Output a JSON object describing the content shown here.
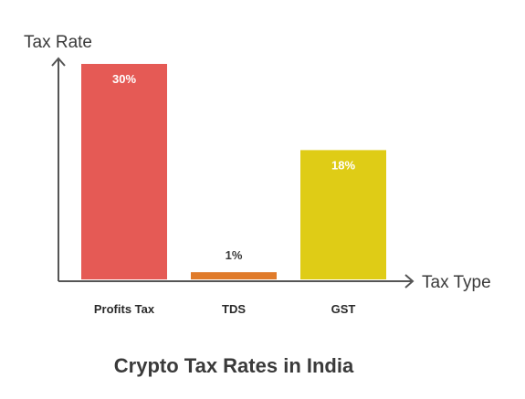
{
  "chart_data": {
    "type": "bar",
    "title": "Crypto Tax Rates in India",
    "xlabel": "Tax Type",
    "ylabel": "Tax Rate",
    "categories": [
      "Profits Tax",
      "TDS",
      "GST"
    ],
    "values": [
      30,
      1,
      18
    ],
    "value_labels": [
      "30%",
      "1%",
      "18%"
    ],
    "ylim": [
      0,
      30
    ],
    "grid": false,
    "legend": "none",
    "colors": [
      "#e55a55",
      "#e07b2a",
      "#dfcc16"
    ],
    "value_label_colors": [
      "#ffffff",
      "#3a3a3a",
      "#ffffff"
    ],
    "axis_color": "#555555"
  }
}
